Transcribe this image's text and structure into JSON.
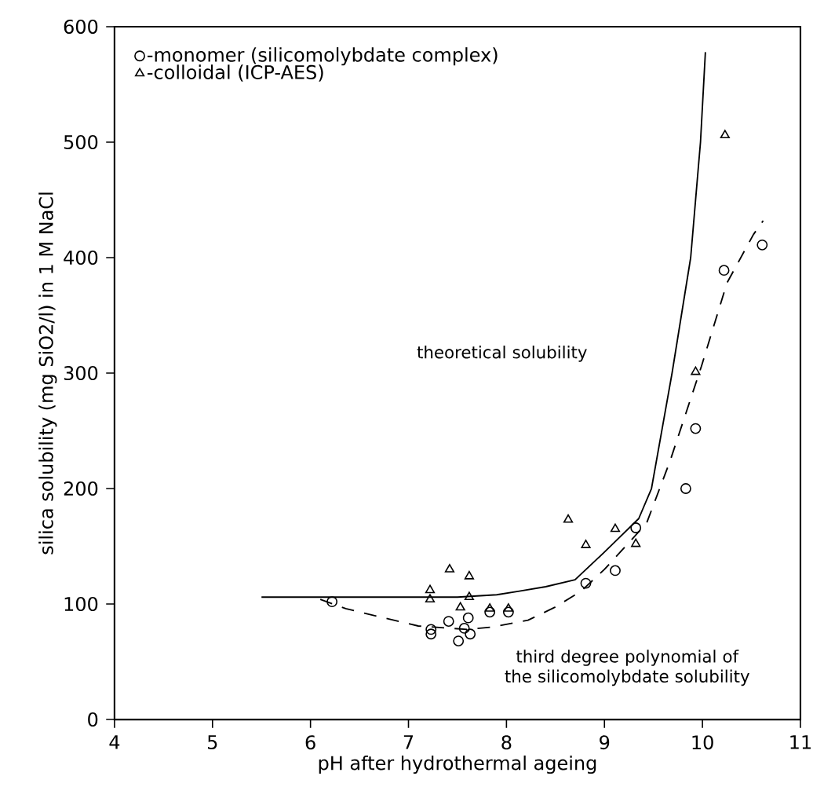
{
  "chart_data": {
    "type": "scatter",
    "xlabel": "pH after hydrothermal ageing",
    "ylabel": "silica solubility (mg SiO2/l) in 1 M NaCl",
    "xlim": [
      4,
      11
    ],
    "ylim": [
      0,
      600
    ],
    "xticks": [
      4,
      5,
      6,
      7,
      8,
      9,
      10,
      11
    ],
    "yticks": [
      0,
      100,
      200,
      300,
      400,
      500,
      600
    ],
    "legend": "top left",
    "grid": false,
    "series": [
      {
        "name": "-monomer (silicomolybdate complex)",
        "marker": "circle",
        "color": "#000000",
        "x": [
          6.22,
          7.23,
          7.23,
          7.41,
          7.61,
          7.57,
          7.63,
          7.51,
          7.83,
          8.02,
          8.81,
          9.11,
          9.32,
          9.83,
          9.93,
          10.22,
          10.61
        ],
        "values": [
          102,
          74,
          78,
          85,
          88,
          79,
          74,
          68,
          93,
          93,
          118,
          129,
          166,
          200,
          252,
          389,
          411
        ]
      },
      {
        "name": "-colloidal (ICP-AES)",
        "marker": "triangle",
        "color": "#000000",
        "x": [
          7.22,
          7.22,
          7.42,
          7.53,
          7.62,
          7.62,
          7.83,
          8.02,
          8.63,
          8.81,
          9.11,
          9.32,
          9.93,
          10.23
        ],
        "values": [
          112,
          104,
          130,
          97,
          124,
          106,
          96,
          96,
          173,
          151,
          165,
          152,
          301,
          506
        ]
      },
      {
        "type": "line",
        "marker": "none",
        "line_style": "solid",
        "color": "#000000",
        "x": [
          5.5,
          6.5,
          7.5,
          7.9,
          8.12,
          8.4,
          8.7,
          9.0,
          9.35,
          9.48,
          9.69,
          9.88,
          9.98,
          10.03
        ],
        "values": [
          106,
          106,
          106,
          108,
          111,
          115,
          121,
          145,
          174,
          200,
          300,
          400,
          500,
          578
        ]
      },
      {
        "type": "line",
        "marker": "none",
        "line_style": "dashed",
        "color": "#000000",
        "x": [
          6.1,
          6.36,
          6.7,
          7.1,
          7.6,
          7.85,
          8.22,
          8.49,
          8.76,
          9.0,
          9.43,
          9.67,
          9.99,
          10.25,
          10.52,
          10.62
        ],
        "values": [
          104,
          96,
          89,
          81,
          78,
          80,
          86,
          97,
          111,
          130,
          170,
          224,
          306,
          378,
          420,
          432
        ]
      }
    ],
    "annotations": [
      "theoretical solubility",
      "third degree polynomial of the silicomolybdate solubility"
    ]
  }
}
